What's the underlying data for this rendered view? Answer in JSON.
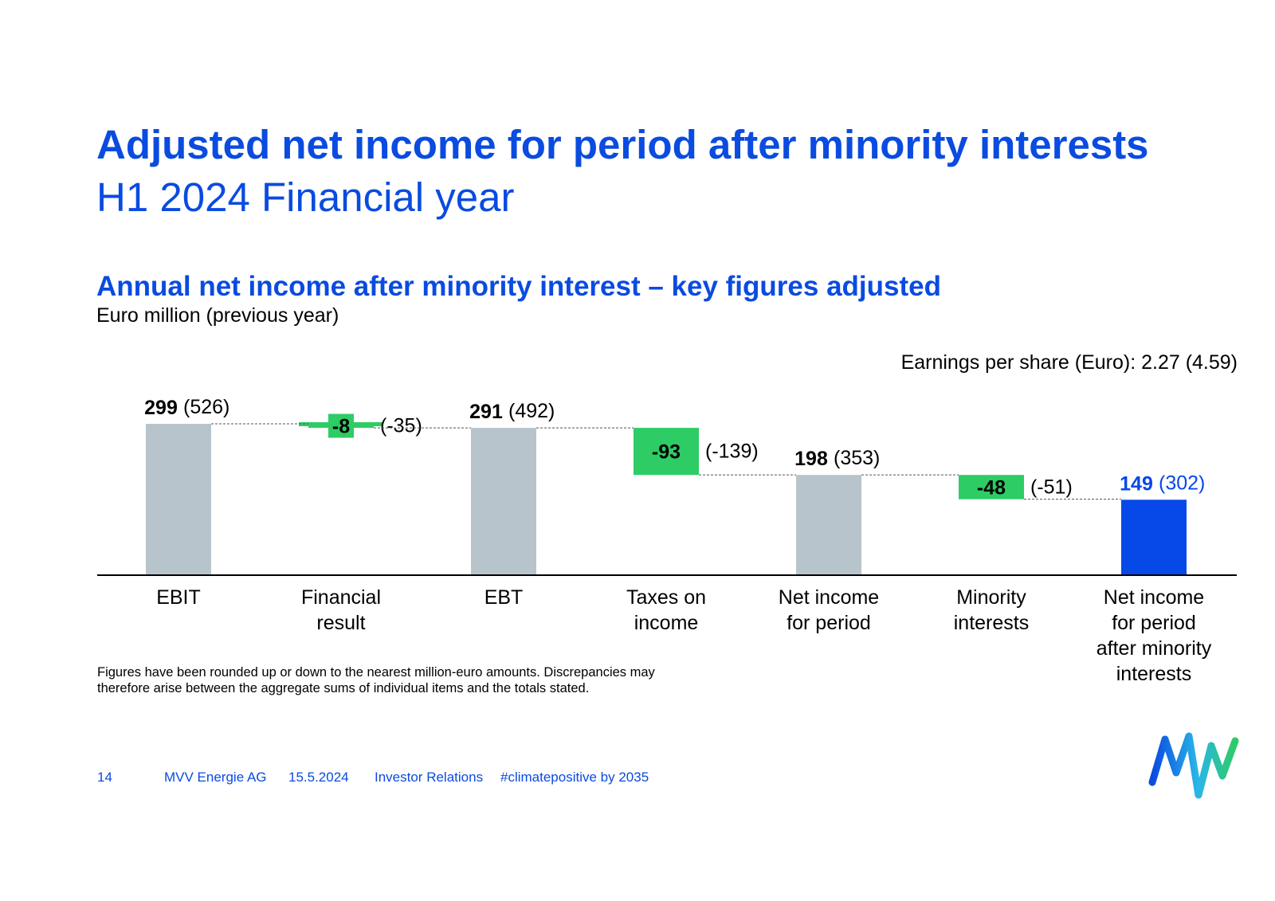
{
  "title": "Adjusted net income for period after minority interests",
  "subtitle": "H1 2024 Financial year",
  "chart_heading": "Annual net income after minority interest – key figures adjusted",
  "chart_unit": "Euro million (previous year)",
  "eps_note": "Earnings per share (Euro): 2.27 (4.59)",
  "footnote": "Figures have been rounded up or down to the nearest million-euro amounts. Discrepancies may therefore arise between the aggregate sums of individual items and the totals stated.",
  "footer": {
    "page_number": "14",
    "company": "MVV Energie AG",
    "date": "15.5.2024",
    "department": "Investor Relations",
    "hashtag": "#climatepositive by 2035"
  },
  "colors": {
    "brand_blue": "#0a4be0",
    "total_bar": "#b8c4cc",
    "delta_bar": "#2ecc65",
    "final_bar": "#0648e8"
  },
  "chart_data": {
    "type": "bar",
    "subtype": "waterfall",
    "title": "Annual net income after minority interest – key figures adjusted",
    "ylabel": "Euro million (previous year)",
    "categories": [
      "EBIT",
      "Financial result",
      "EBT",
      "Taxes on income",
      "Net income for period",
      "Minority interests",
      "Net income for period after minority interests"
    ],
    "category_lines": [
      [
        "EBIT"
      ],
      [
        "Financial",
        "result"
      ],
      [
        "EBT"
      ],
      [
        "Taxes on",
        "income"
      ],
      [
        "Net income",
        "for period"
      ],
      [
        "Minority",
        "interests"
      ],
      [
        "Net income",
        "for period",
        "after minority",
        "interests"
      ]
    ],
    "kinds": [
      "total",
      "delta",
      "total",
      "delta",
      "total",
      "delta",
      "final"
    ],
    "values": [
      299,
      -8,
      291,
      -93,
      198,
      -48,
      149
    ],
    "value_labels": [
      "299",
      "-8",
      "291",
      "-93",
      "198",
      "-48",
      "149"
    ],
    "previous_year_labels": [
      "(526)",
      "(-35)",
      "(492)",
      "(-139)",
      "(353)",
      "(-51)",
      "(302)"
    ],
    "ylim": [
      0,
      310
    ],
    "grid": false
  }
}
